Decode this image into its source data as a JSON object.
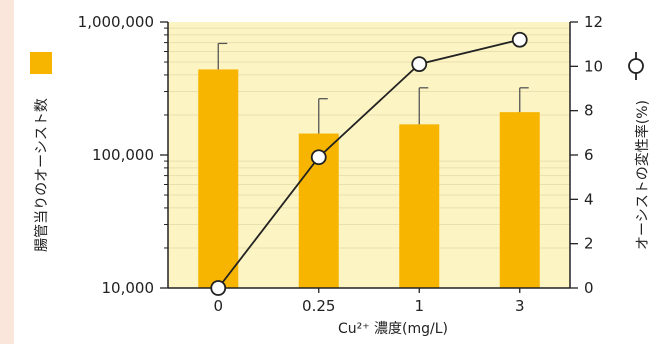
{
  "chart_data": {
    "type": "bar",
    "categories": [
      "0",
      "0.25",
      "1",
      "3"
    ],
    "xlabel": "Cu²⁺ 濃度(mg/L)",
    "y_left": {
      "label": "腸管当りのオーシスト数",
      "scale": "log",
      "ylim": [
        10000,
        1000000
      ],
      "ticks": [
        10000,
        100000,
        1000000
      ],
      "tick_labels": [
        "10,000",
        "100,000",
        "1,000,000"
      ]
    },
    "y_right": {
      "label": "オーシストの変性率(%)",
      "ylim": [
        0,
        12
      ],
      "ticks": [
        0,
        2,
        4,
        6,
        8,
        10,
        12
      ],
      "tick_labels": [
        "0",
        "2",
        "4",
        "6",
        "8",
        "10",
        "12"
      ]
    },
    "series": [
      {
        "type": "bar",
        "axis": "left",
        "values": [
          440000,
          145000,
          170000,
          210000
        ],
        "error_upper": [
          690000,
          265000,
          320000,
          320000
        ]
      },
      {
        "type": "line",
        "axis": "right",
        "marker": "open-circle",
        "values": [
          0,
          5.9,
          10.1,
          11.2
        ]
      }
    ],
    "colors": {
      "bar": "#f7b500",
      "plot_background": "#fdf4c4",
      "line": "#222222",
      "marker_fill": "#ffffff",
      "left_stripe": "#fbe6dc"
    }
  }
}
